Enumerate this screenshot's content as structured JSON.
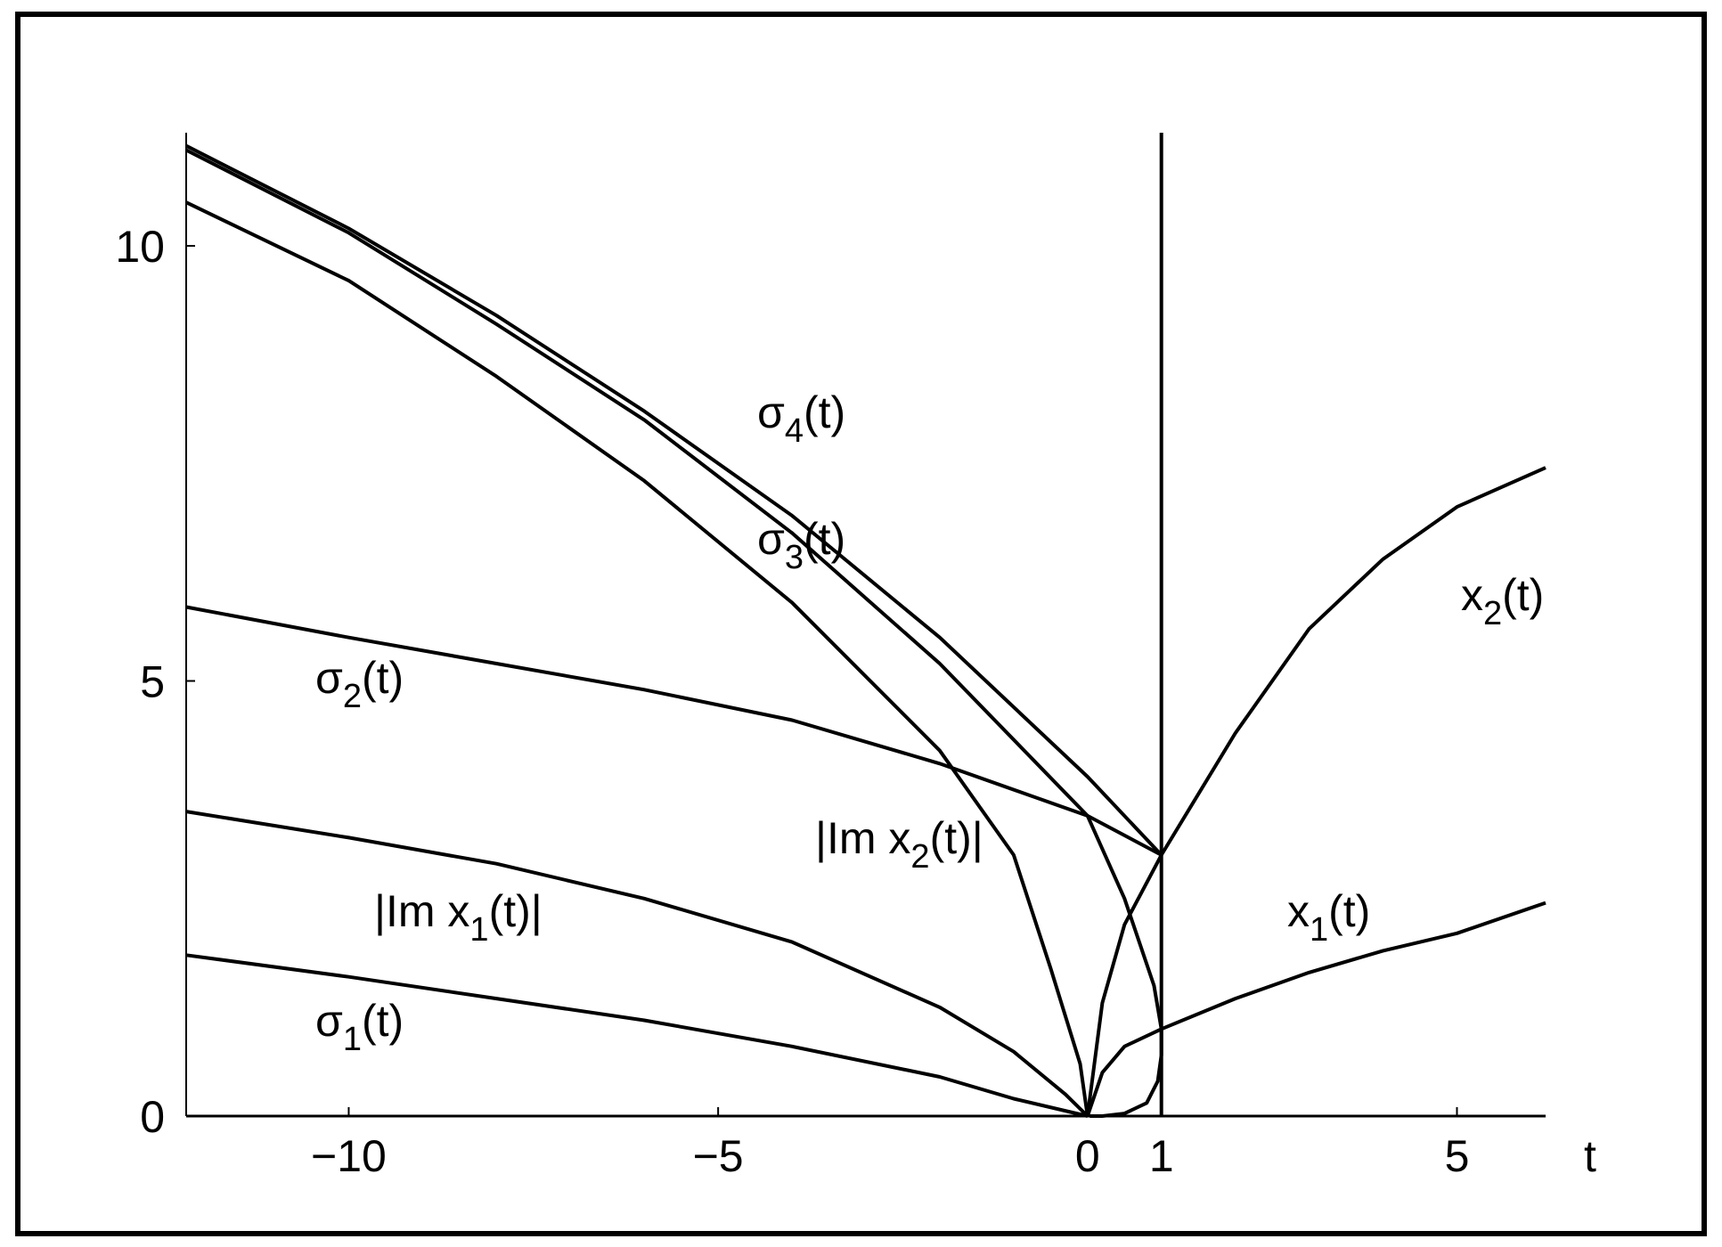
{
  "chart_data": {
    "type": "line",
    "xlabel": "t",
    "xlim": [
      -12.2,
      6.2
    ],
    "ylim": [
      0,
      11.3
    ],
    "xticks": [
      {
        "value": -10,
        "label": "−10"
      },
      {
        "value": -5,
        "label": "−5"
      },
      0,
      1,
      5
    ],
    "yticks": [
      0,
      5,
      10
    ],
    "color": "#000000",
    "series": [
      {
        "name": "σ4(t)",
        "x": [
          -12.2,
          -10,
          -8,
          -6,
          -4,
          -2,
          0,
          1
        ],
        "values": [
          11.15,
          10.2,
          9.2,
          8.1,
          6.9,
          5.5,
          3.9,
          3.0
        ]
      },
      {
        "name": "σ3(t)",
        "x": [
          -12.2,
          -10,
          -8,
          -6,
          -4,
          -2,
          0,
          0.5,
          0.9,
          1,
          1,
          0.95,
          0.8,
          0.5,
          0.2,
          0.03
        ],
        "values": [
          11.1,
          10.15,
          9.1,
          8.0,
          6.7,
          5.2,
          3.45,
          2.5,
          1.5,
          1.0,
          0.7,
          0.4,
          0.15,
          0.03,
          0,
          0
        ]
      },
      {
        "name": "σ2(t)",
        "x": [
          -12.2,
          -10,
          -8,
          -6,
          -4,
          -2,
          0,
          1
        ],
        "values": [
          5.85,
          5.5,
          5.2,
          4.9,
          4.55,
          4.05,
          3.45,
          3.0
        ]
      },
      {
        "name": "|Im x2(t)|",
        "x": [
          -12.2,
          -10,
          -8,
          -6,
          -4,
          -2,
          -1,
          -0.5,
          -0.1,
          0
        ],
        "values": [
          10.5,
          9.6,
          8.5,
          7.3,
          5.9,
          4.2,
          3.0,
          1.7,
          0.6,
          0
        ]
      },
      {
        "name": "|Im x1(t)|",
        "x": [
          -12.2,
          -10,
          -8,
          -6,
          -4,
          -2,
          -1,
          -0.3,
          0
        ],
        "values": [
          3.5,
          3.2,
          2.9,
          2.5,
          2.0,
          1.25,
          0.74,
          0.25,
          0
        ]
      },
      {
        "name": "σ1(t)",
        "x": [
          -12.2,
          -10,
          -8,
          -6,
          -4,
          -2,
          -1,
          0
        ],
        "values": [
          1.85,
          1.6,
          1.35,
          1.1,
          0.8,
          0.45,
          0.2,
          0
        ]
      },
      {
        "name": "x2(t)",
        "x": [
          0,
          0.2,
          0.5,
          1,
          2,
          3,
          4,
          5,
          6.2
        ],
        "values": [
          0,
          1.3,
          2.2,
          3.0,
          4.4,
          5.6,
          6.4,
          7.0,
          7.45
        ]
      },
      {
        "name": "x1(t)",
        "x": [
          0,
          0.2,
          0.5,
          1,
          2,
          3,
          4,
          5,
          6.2
        ],
        "values": [
          0,
          0.5,
          0.8,
          1.0,
          1.35,
          1.65,
          1.9,
          2.1,
          2.45
        ]
      },
      {
        "x": [
          1,
          1
        ],
        "values": [
          0,
          11.3
        ]
      }
    ]
  }
}
